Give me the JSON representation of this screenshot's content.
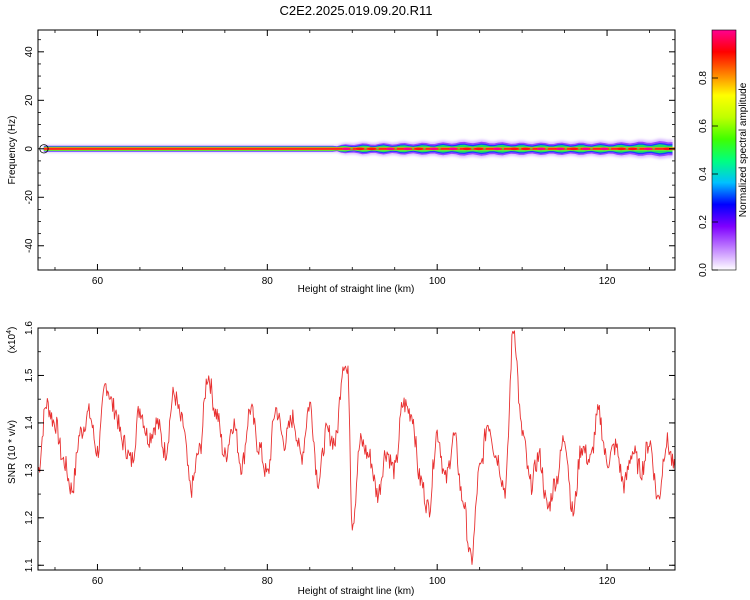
{
  "title": "C2E2.2025.019.09.20.R11",
  "chart_data": [
    {
      "type": "heatmap",
      "xlabel": "Height of straight line (km)",
      "ylabel": "Frequency (Hz)",
      "xlim": [
        53,
        128
      ],
      "ylim": [
        -50,
        49
      ],
      "xticks": [
        "60",
        "80",
        "100",
        "120"
      ],
      "yticks": [
        "40",
        "20",
        "0",
        "-20",
        "-40"
      ],
      "ridge_frequency_hz": 0,
      "band_halfwidth_hz": {
        "x": [
          53,
          88,
          90,
          100,
          104,
          110,
          120,
          128
        ],
        "values": [
          1.5,
          1.5,
          2.5,
          3.0,
          3.5,
          3.0,
          3.0,
          4.0
        ]
      },
      "colorbar": {
        "label": "Normalized spectral amplitude",
        "range": [
          0.0,
          1.0
        ],
        "ticks": [
          "0.0",
          "0.2",
          "0.4",
          "0.6",
          "0.8"
        ],
        "colors": [
          "#ffffff",
          "#c080ff",
          "#7f00ff",
          "#0000ff",
          "#00c0ff",
          "#00ff80",
          "#40ff00",
          "#c0ff00",
          "#ffff00",
          "#ff8000",
          "#ff0000",
          "#ff0090"
        ]
      },
      "grid": false
    },
    {
      "type": "line",
      "xlabel": "Height of straight line (km)",
      "ylabel": "SNR (10 * v/v)",
      "y_multiplier_label": "(x10",
      "y_multiplier_exponent": "4",
      "xlim": [
        53,
        128
      ],
      "ylim": [
        1.09,
        1.6
      ],
      "xticks": [
        "60",
        "80",
        "100",
        "120"
      ],
      "yticks": [
        "1.6",
        "1.5",
        "1.4",
        "1.3",
        "1.2",
        "1.1"
      ],
      "series": [
        {
          "color": "#e83030",
          "x": [
            53,
            54,
            55,
            56,
            57,
            58,
            59,
            60,
            61,
            62,
            63,
            64,
            65,
            66,
            67,
            68,
            69,
            70,
            71,
            72,
            73,
            74,
            75,
            76,
            77,
            78,
            79,
            80,
            81,
            82,
            83,
            84,
            85,
            86,
            87,
            88,
            89,
            89.5,
            90,
            91,
            92,
            93,
            94,
            95,
            96,
            97,
            98,
            99,
            100,
            101,
            102,
            103,
            104,
            105,
            106,
            107,
            108,
            109,
            110,
            111,
            112,
            113,
            114,
            115,
            116,
            117,
            118,
            119,
            120,
            121,
            122,
            123,
            124,
            125,
            126,
            127,
            128
          ],
          "y": [
            1.3,
            1.44,
            1.4,
            1.32,
            1.26,
            1.38,
            1.42,
            1.34,
            1.48,
            1.43,
            1.36,
            1.32,
            1.43,
            1.37,
            1.4,
            1.34,
            1.46,
            1.4,
            1.26,
            1.34,
            1.5,
            1.42,
            1.33,
            1.4,
            1.31,
            1.43,
            1.35,
            1.29,
            1.43,
            1.36,
            1.41,
            1.33,
            1.44,
            1.28,
            1.38,
            1.36,
            1.53,
            1.5,
            1.19,
            1.36,
            1.33,
            1.25,
            1.34,
            1.3,
            1.44,
            1.42,
            1.28,
            1.22,
            1.38,
            1.28,
            1.37,
            1.24,
            1.11,
            1.3,
            1.4,
            1.33,
            1.26,
            1.6,
            1.38,
            1.27,
            1.33,
            1.22,
            1.28,
            1.37,
            1.21,
            1.35,
            1.32,
            1.42,
            1.32,
            1.35,
            1.27,
            1.34,
            1.3,
            1.36,
            1.24,
            1.36,
            1.3
          ]
        }
      ],
      "grid": false
    }
  ]
}
